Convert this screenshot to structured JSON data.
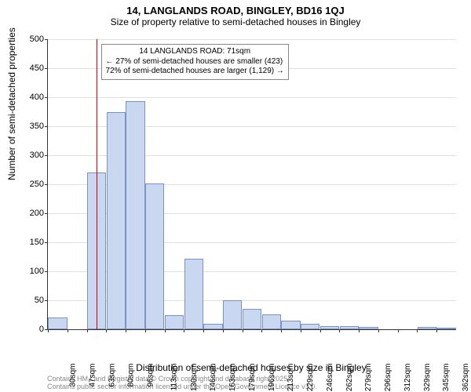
{
  "title": "14, LANGLANDS ROAD, BINGLEY, BD16 1QJ",
  "subtitle": "Size of property relative to semi-detached houses in Bingley",
  "ylabel": "Number of semi-detached properties",
  "xlabel": "Distribution of semi-detached houses by size in Bingley",
  "chart": {
    "type": "histogram",
    "background_color": "#ffffff",
    "grid_color": "#e0e0e0",
    "axis_color": "#333333",
    "bar_fill": "#c9d8f0",
    "bar_border": "#7a93c4",
    "marker_color": "#cc0000",
    "ylim": [
      0,
      500
    ],
    "ytick_step": 50,
    "xtick_labels": [
      "30sqm",
      "47sqm",
      "63sqm",
      "80sqm",
      "96sqm",
      "113sqm",
      "130sqm",
      "146sqm",
      "163sqm",
      "179sqm",
      "196sqm",
      "213sqm",
      "229sqm",
      "246sqm",
      "262sqm",
      "279sqm",
      "296sqm",
      "312sqm",
      "329sqm",
      "345sqm",
      "362sqm"
    ],
    "bars": [
      20,
      0,
      270,
      375,
      393,
      252,
      25,
      122,
      10,
      50,
      35,
      26,
      15,
      10,
      6,
      5,
      4,
      0,
      0,
      4,
      2
    ],
    "x_start": 30,
    "x_step": 16.5,
    "marker_value": 71
  },
  "callout": {
    "line1": "14 LANGLANDS ROAD: 71sqm",
    "line2": "← 27% of semi-detached houses are smaller (423)",
    "line3": "72% of semi-detached houses are larger (1,129) →"
  },
  "footer": {
    "line1": "Contains HM Land Registry data © Crown copyright and database right 2025.",
    "line2": "Contains public sector information licensed under the Open Government Licence v3.0."
  },
  "typography": {
    "title_fontsize": 13,
    "subtitle_fontsize": 12,
    "axis_label_fontsize": 12,
    "tick_fontsize": 11,
    "xtick_fontsize": 10,
    "callout_fontsize": 10,
    "footer_fontsize": 9
  }
}
